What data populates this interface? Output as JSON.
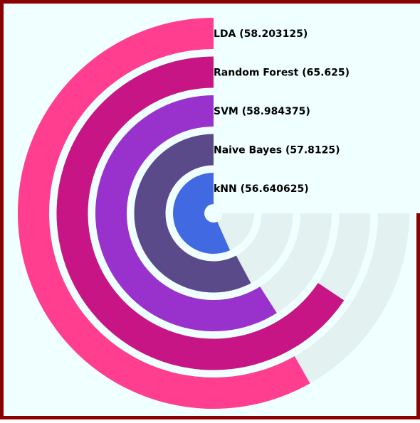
{
  "chart_data": {
    "type": "radial-bar",
    "title": "",
    "max_value": 100,
    "track_color": "#e3f1f1",
    "background": "#f0ffff",
    "border_color": "#8b0000",
    "series": [
      {
        "label": "LDA (58.203125)",
        "name": "LDA",
        "value": 58.203125,
        "color": "#ff3e8f"
      },
      {
        "label": "Random Forest (65.625)",
        "name": "Random Forest",
        "value": 65.625,
        "color": "#c71585"
      },
      {
        "label": "SVM (58.984375)",
        "name": "SVM",
        "value": 58.984375,
        "color": "#9932cc"
      },
      {
        "label": "Naive Bayes (57.8125)",
        "name": "Naive Bayes",
        "value": 57.8125,
        "color": "#5b4a8a"
      },
      {
        "label": "kNN (56.640625)",
        "name": "kNN",
        "value": 56.640625,
        "color": "#4169e1"
      }
    ]
  }
}
